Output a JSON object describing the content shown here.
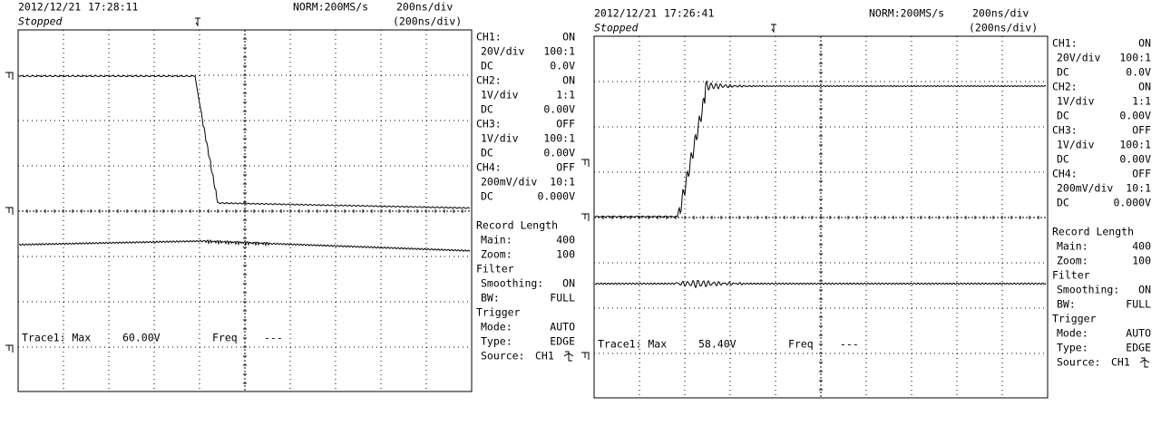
{
  "scopes": [
    {
      "date": "2012/12/21",
      "time": "17:28:11",
      "status": "Stopped",
      "mode": "NORM:200MS/s",
      "timebase": "200ns/div",
      "zoom": "(200ns/div)",
      "channels": [
        {
          "name": "CH1:",
          "state": "ON",
          "scale": "20V/div",
          "probe": "100:1",
          "coupling": "DC",
          "offset": "0.0V"
        },
        {
          "name": "CH2:",
          "state": "ON",
          "scale": "1V/div",
          "probe": "1:1",
          "coupling": "DC",
          "offset": "0.00V"
        },
        {
          "name": "CH3:",
          "state": "OFF",
          "scale": "1V/div",
          "probe": "100:1",
          "coupling": "DC",
          "offset": "0.00V"
        },
        {
          "name": "CH4:",
          "state": "OFF",
          "scale": "200mV/div",
          "probe": "10:1",
          "coupling": "DC",
          "offset": "0.000V"
        }
      ],
      "record": {
        "title": "Record Length",
        "main_label": "Main:",
        "main": "400",
        "zoom_label": "Zoom:",
        "zoom": "100"
      },
      "filter": {
        "title": "Filter",
        "smoothing_label": "Smoothing:",
        "smoothing": "ON",
        "bw_label": "BW:",
        "bw": "FULL"
      },
      "trigger": {
        "title": "Trigger",
        "mode_label": "Mode:",
        "mode": "AUTO",
        "type_label": "Type:",
        "type": "EDGE",
        "source_label": "Source:",
        "source": "CH1"
      },
      "readout": {
        "label": "Trace1: Max",
        "value": "60.00V",
        "freq_label": "Freq",
        "freq": "---"
      }
    },
    {
      "date": "2012/12/21",
      "time": "17:26:41",
      "status": "Stopped",
      "mode": "NORM:200MS/s",
      "timebase": "200ns/div",
      "zoom": "(200ns/div)",
      "channels": [
        {
          "name": "CH1:",
          "state": "ON",
          "scale": "20V/div",
          "probe": "100:1",
          "coupling": "DC",
          "offset": "0.0V"
        },
        {
          "name": "CH2:",
          "state": "ON",
          "scale": "1V/div",
          "probe": "1:1",
          "coupling": "DC",
          "offset": "0.00V"
        },
        {
          "name": "CH3:",
          "state": "OFF",
          "scale": "1V/div",
          "probe": "100:1",
          "coupling": "DC",
          "offset": "0.00V"
        },
        {
          "name": "CH4:",
          "state": "OFF",
          "scale": "200mV/div",
          "probe": "10:1",
          "coupling": "DC",
          "offset": "0.000V"
        }
      ],
      "record": {
        "title": "Record Length",
        "main_label": "Main:",
        "main": "400",
        "zoom_label": "Zoom:",
        "zoom": "100"
      },
      "filter": {
        "title": "Filter",
        "smoothing_label": "Smoothing:",
        "smoothing": "ON",
        "bw_label": "BW:",
        "bw": "FULL"
      },
      "trigger": {
        "title": "Trigger",
        "mode_label": "Mode:",
        "mode": "AUTO",
        "type_label": "Type:",
        "type": "EDGE",
        "source_label": "Source:",
        "source": "CH1"
      },
      "readout": {
        "label": "Trace1: Max",
        "value": "58.40V",
        "freq_label": "Freq",
        "freq": "---"
      }
    }
  ]
}
